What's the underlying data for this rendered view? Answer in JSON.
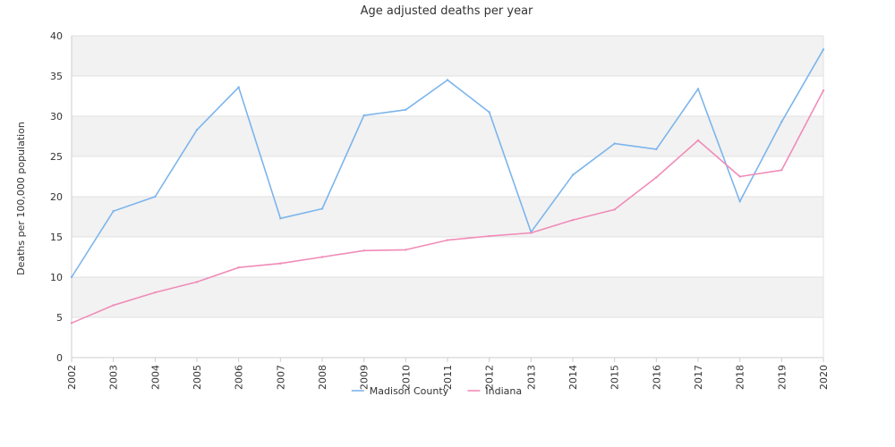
{
  "chart_data": {
    "type": "line",
    "title": "Age adjusted deaths per year",
    "xlabel": "",
    "ylabel": "Deaths per 100,000 population",
    "ylim": [
      0,
      40
    ],
    "yticks": [
      0,
      5,
      10,
      15,
      20,
      25,
      30,
      35,
      40
    ],
    "grid": "alternating horizontal bands",
    "legend_position": "bottom",
    "x": [
      "2002",
      "2003",
      "2004",
      "2005",
      "2006",
      "2007",
      "2008",
      "2009",
      "2010",
      "2011",
      "2012",
      "2013",
      "2014",
      "2015",
      "2016",
      "2017",
      "2018",
      "2019",
      "2020"
    ],
    "series": [
      {
        "name": "Madison County",
        "color": "#7cb5ec",
        "values": [
          10.0,
          18.2,
          20.0,
          28.3,
          33.6,
          17.3,
          18.5,
          30.1,
          30.8,
          34.5,
          30.5,
          15.6,
          22.7,
          26.6,
          25.9,
          33.4,
          19.4,
          29.3,
          38.3
        ]
      },
      {
        "name": "Indiana",
        "color": "#f08cb8",
        "values": [
          4.3,
          6.5,
          8.1,
          9.4,
          11.2,
          11.7,
          12.5,
          13.3,
          13.4,
          14.6,
          15.1,
          15.5,
          17.1,
          18.4,
          22.4,
          27.0,
          22.5,
          23.3,
          33.2
        ]
      }
    ]
  }
}
